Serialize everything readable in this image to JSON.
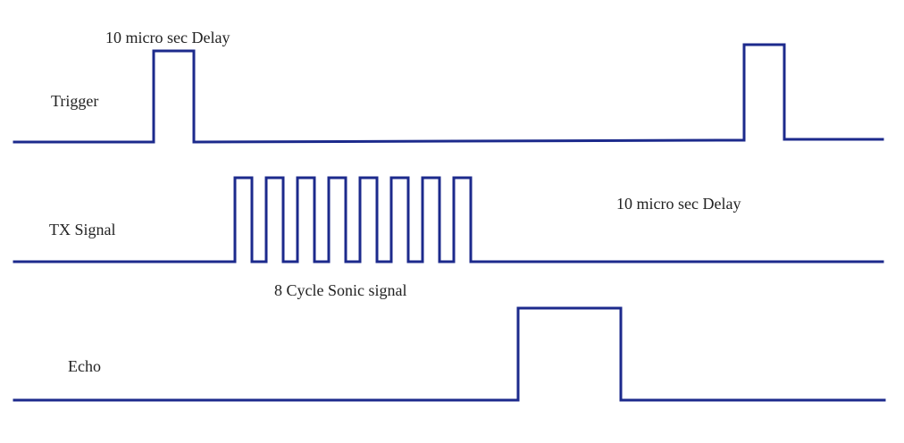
{
  "colors": {
    "signal": "#1c2a8c",
    "text": "#222222",
    "background": "#ffffff"
  },
  "signals": {
    "trigger": {
      "label": "Trigger"
    },
    "tx": {
      "label": "TX Signal"
    },
    "echo": {
      "label": "Echo"
    }
  },
  "annotations": {
    "trigger_delay": "10 micro sec Delay",
    "sonic_burst": "8 Cycle Sonic signal",
    "second_delay": "10 micro sec Delay"
  },
  "tx_cycles": 8
}
